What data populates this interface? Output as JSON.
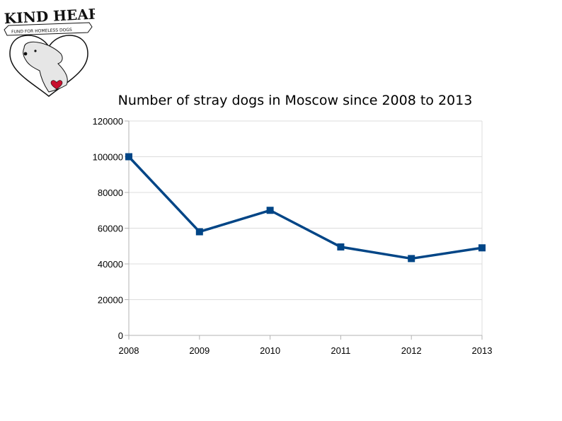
{
  "logo": {
    "name": "KIND HEART",
    "tagline": "FUND FOR HOMELESS DOGS"
  },
  "chart_data": {
    "type": "line",
    "title": "Number of stray dogs in Moscow since 2008 to 2013",
    "xlabel": "",
    "ylabel": "",
    "categories": [
      "2008",
      "2009",
      "2010",
      "2011",
      "2012",
      "2013"
    ],
    "series": [
      {
        "values": [
          100000,
          58000,
          70000,
          49500,
          43000,
          49000
        ],
        "color": "#004586"
      }
    ],
    "ylim": [
      0,
      120000
    ],
    "yticks": [
      0,
      20000,
      40000,
      60000,
      80000,
      100000,
      120000
    ],
    "grid": true,
    "legend": "none"
  }
}
